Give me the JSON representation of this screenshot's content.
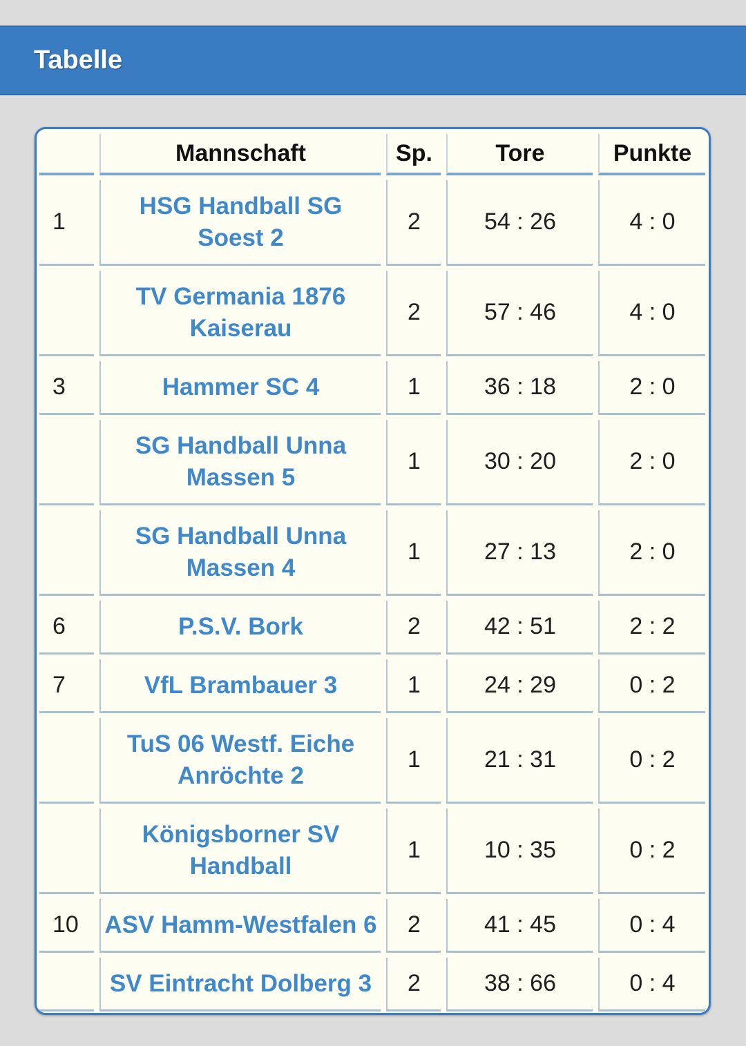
{
  "header": {
    "title": "Tabelle"
  },
  "table": {
    "columns": {
      "rank": "",
      "team": "Mannschaft",
      "games": "Sp.",
      "goals": "Tore",
      "points": "Punkte"
    },
    "rows": [
      {
        "rank": "1",
        "team": "HSG Handball SG Soest 2",
        "games": "2",
        "goals": "54 : 26",
        "points": "4 : 0"
      },
      {
        "rank": "",
        "team": "TV Germania 1876 Kaiserau",
        "games": "2",
        "goals": "57 : 46",
        "points": "4 : 0"
      },
      {
        "rank": "3",
        "team": "Hammer SC 4",
        "games": "1",
        "goals": "36 : 18",
        "points": "2 : 0"
      },
      {
        "rank": "",
        "team": "SG Handball Unna Massen 5",
        "games": "1",
        "goals": "30 : 20",
        "points": "2 : 0"
      },
      {
        "rank": "",
        "team": "SG Handball Unna Massen 4",
        "games": "1",
        "goals": "27 : 13",
        "points": "2 : 0"
      },
      {
        "rank": "6",
        "team": "P.S.V. Bork",
        "games": "2",
        "goals": "42 : 51",
        "points": "2 : 2"
      },
      {
        "rank": "7",
        "team": "VfL Brambauer 3",
        "games": "1",
        "goals": "24 : 29",
        "points": "0 : 2"
      },
      {
        "rank": "",
        "team": "TuS 06 Westf. Eiche Anröchte 2",
        "games": "1",
        "goals": "21 : 31",
        "points": "0 : 2"
      },
      {
        "rank": "",
        "team": "Königsborner SV Handball",
        "games": "1",
        "goals": "10 : 35",
        "points": "0 : 2"
      },
      {
        "rank": "10",
        "team": "ASV Hamm-Westfalen 6",
        "games": "2",
        "goals": "41 : 45",
        "points": "0 : 4"
      },
      {
        "rank": "",
        "team": "SV Eintracht Dolberg 3",
        "games": "2",
        "goals": "38 : 66",
        "points": "0 : 4"
      }
    ]
  },
  "colors": {
    "header_bg": "#3a7cc2",
    "team_link": "#3f88c9",
    "table_bg": "#fdfdf2",
    "page_bg": "#dcdcdc"
  }
}
